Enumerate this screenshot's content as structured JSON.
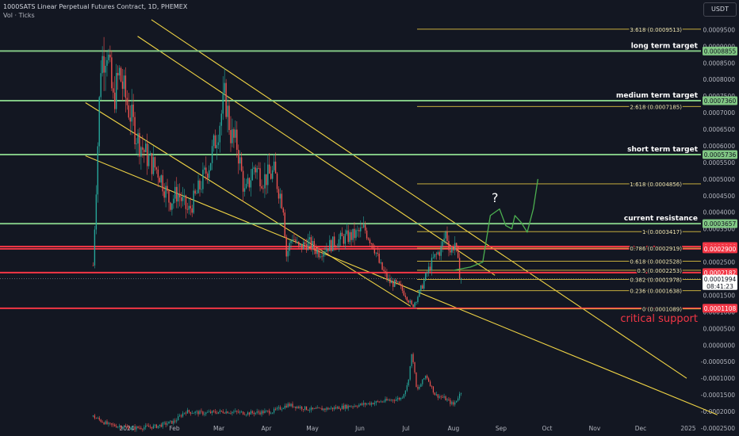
{
  "header": {
    "title": "1000SATS Linear Perpetual Futures Contract, 1D, PHEMEX",
    "volume_label": "Vol · Ticks"
  },
  "currency_label": "USDT",
  "colors": {
    "background": "#131722",
    "candle_up": "#26a69a",
    "candle_down": "#ef5350",
    "fib": "#e0c341",
    "trendline": "#f0d445",
    "support_resistance_green": "#81c784",
    "support_resistance_red": "#f23645",
    "projection": "#4caf50"
  },
  "chart_data": {
    "type": "candlestick",
    "ylim": [
      -0.00025,
      0.00097
    ],
    "price_axis_ticks": [
      "0.0009500",
      "0.0009000",
      "0.0008500",
      "0.0008000",
      "0.0007500",
      "0.0007000",
      "0.0006500",
      "0.0006000",
      "0.0005500",
      "0.0005000",
      "0.0004500",
      "0.0004000",
      "0.0003500",
      "0.0003000",
      "0.0002500",
      "0.0002000",
      "0.0001500",
      "0.0001000",
      "0.0000500",
      "0.0000000",
      "-0.0000500",
      "-0.0001000",
      "-0.0001500",
      "-0.0002000",
      "-0.0002500"
    ],
    "time_axis_labels": [
      "2024",
      "Feb",
      "Mar",
      "Apr",
      "May",
      "Jun",
      "Jul",
      "Aug",
      "Sep",
      "Oct",
      "Nov",
      "Dec",
      "2025"
    ],
    "fibonacci_levels": [
      {
        "label": "3.618 (0.0009513)",
        "value": 0.0009513
      },
      {
        "label": "2.618 (0.0007185)",
        "value": 0.0007185
      },
      {
        "label": "1.618 (0.0004856)",
        "value": 0.0004856
      },
      {
        "label": "1 (0.0003417)",
        "value": 0.0003417
      },
      {
        "label": "0.786 (0.0002919)",
        "value": 0.0002919
      },
      {
        "label": "0.618 (0.0002528)",
        "value": 0.0002528
      },
      {
        "label": "0.5 (0.0002253)",
        "value": 0.0002253
      },
      {
        "label": "0.382 (0.0001978)",
        "value": 0.0001978
      },
      {
        "label": "0.236 (0.0001638)",
        "value": 0.0001638
      },
      {
        "label": "0 (0.0001089)",
        "value": 0.0001089
      }
    ],
    "horizontal_levels": [
      {
        "label": "long term target",
        "value": 0.0008855,
        "color": "green",
        "badge": "0.0008855"
      },
      {
        "label": "medium term target",
        "value": 0.000736,
        "color": "green",
        "badge": "0.0007360"
      },
      {
        "label": "short term target",
        "value": 0.0005736,
        "color": "green",
        "badge": "0.0005736"
      },
      {
        "label": "current resistance",
        "value": 0.0003657,
        "color": "green",
        "badge": "0.0003657"
      },
      {
        "label": "",
        "value": 0.0002966,
        "color": "red",
        "badge": "0.0002966"
      },
      {
        "label": "",
        "value": 0.00029,
        "color": "red",
        "badge": "0.0002900"
      },
      {
        "label": "",
        "value": 0.0002182,
        "color": "red",
        "badge": "0.0002182"
      },
      {
        "label": "critical support",
        "value": 0.0001108,
        "color": "red",
        "badge": "0.0001108"
      }
    ],
    "last_price": {
      "value": "0.0001994",
      "countdown": "08:41:23"
    },
    "annotations": [
      "?"
    ],
    "trendlines": [
      {
        "points": [
          [
            "2024-01-08",
            0.00093
          ],
          [
            "2024-08-28",
            0.00021
          ]
        ]
      },
      {
        "points": [
          [
            "2024-01-17",
            0.00098
          ],
          [
            "2024-12-31",
            -0.0001
          ]
        ]
      },
      {
        "points": [
          [
            "2023-12-05",
            0.00073
          ],
          [
            "2024-07-04",
            0.000117
          ]
        ]
      },
      {
        "points": [
          [
            "2023-12-05",
            0.00057
          ],
          [
            "2025-01-20",
            -0.00021
          ]
        ]
      }
    ],
    "projection_path": [
      [
        "2024-08-01",
        0.000225
      ],
      [
        "2024-08-12",
        0.000235
      ],
      [
        "2024-08-20",
        0.00025
      ],
      [
        "2024-08-25",
        0.00039
      ],
      [
        "2024-08-31",
        0.00041
      ],
      [
        "2024-09-04",
        0.00036
      ],
      [
        "2024-09-08",
        0.00035
      ],
      [
        "2024-09-10",
        0.00039
      ],
      [
        "2024-09-14",
        0.00037
      ],
      [
        "2024-09-18",
        0.00034
      ],
      [
        "2024-09-22",
        0.00041
      ],
      [
        "2024-09-25",
        0.0005
      ]
    ],
    "price_path": [
      [
        "2023-12-10",
        0.00024
      ],
      [
        "2023-12-12",
        0.00048
      ],
      [
        "2023-12-15",
        0.00085
      ],
      [
        "2023-12-19",
        0.0009
      ],
      [
        "2023-12-23",
        0.00073
      ],
      [
        "2023-12-27",
        0.00082
      ],
      [
        "2024-01-01",
        0.00073
      ],
      [
        "2024-01-08",
        0.00062
      ],
      [
        "2024-01-15",
        0.00056
      ],
      [
        "2024-01-22",
        0.00052
      ],
      [
        "2024-01-29",
        0.00043
      ],
      [
        "2024-02-03",
        0.00046
      ],
      [
        "2024-02-10",
        0.0004
      ],
      [
        "2024-02-17",
        0.00047
      ],
      [
        "2024-02-24",
        0.00055
      ],
      [
        "2024-03-01",
        0.00066
      ],
      [
        "2024-03-05",
        0.00075
      ],
      [
        "2024-03-09",
        0.00063
      ],
      [
        "2024-03-13",
        0.0006
      ],
      [
        "2024-03-18",
        0.00045
      ],
      [
        "2024-03-24",
        0.00054
      ],
      [
        "2024-03-30",
        0.0005
      ],
      [
        "2024-04-06",
        0.00052
      ],
      [
        "2024-04-12",
        0.00042
      ],
      [
        "2024-04-14",
        0.00027
      ],
      [
        "2024-04-18",
        0.00033
      ],
      [
        "2024-04-22",
        0.00029
      ],
      [
        "2024-04-28",
        0.00031
      ],
      [
        "2024-05-05",
        0.00028
      ],
      [
        "2024-05-12",
        0.0003
      ],
      [
        "2024-05-20",
        0.00032
      ],
      [
        "2024-05-28",
        0.00033
      ],
      [
        "2024-06-04",
        0.00035
      ],
      [
        "2024-06-10",
        0.0003
      ],
      [
        "2024-06-14",
        0.00024
      ],
      [
        "2024-06-20",
        0.00019
      ],
      [
        "2024-06-26",
        0.00018
      ],
      [
        "2024-07-01",
        0.00015
      ],
      [
        "2024-07-05",
        0.000115
      ],
      [
        "2024-07-10",
        0.00016
      ],
      [
        "2024-07-15",
        0.00022
      ],
      [
        "2024-07-19",
        0.00026
      ],
      [
        "2024-07-24",
        0.00029
      ],
      [
        "2024-07-27",
        0.00034
      ],
      [
        "2024-07-30",
        0.00028
      ],
      [
        "2024-08-02",
        0.00031
      ],
      [
        "2024-08-05",
        0.00021
      ],
      [
        "2024-08-06",
        0.0001994
      ]
    ],
    "volume_path": [
      [
        "2023-12-10",
        -0.000215
      ],
      [
        "2023-12-20",
        -0.00024
      ],
      [
        "2024-01-05",
        -0.00025
      ],
      [
        "2024-01-20",
        -0.000245
      ],
      [
        "2024-02-01",
        -0.00023
      ],
      [
        "2024-02-08",
        -0.0002
      ],
      [
        "2024-02-20",
        -0.000205
      ],
      [
        "2024-03-05",
        -0.0002
      ],
      [
        "2024-03-20",
        -0.000205
      ],
      [
        "2024-04-05",
        -0.0002
      ],
      [
        "2024-04-15",
        -0.00018
      ],
      [
        "2024-05-01",
        -0.000195
      ],
      [
        "2024-05-15",
        -0.00019
      ],
      [
        "2024-06-01",
        -0.00018
      ],
      [
        "2024-06-15",
        -0.00017
      ],
      [
        "2024-06-28",
        -0.00016
      ],
      [
        "2024-07-02",
        -0.00012
      ],
      [
        "2024-07-05",
        -2e-05
      ],
      [
        "2024-07-08",
        -0.00014
      ],
      [
        "2024-07-14",
        -9e-05
      ],
      [
        "2024-07-20",
        -0.00015
      ],
      [
        "2024-07-26",
        -0.00016
      ],
      [
        "2024-08-01",
        -0.00018
      ],
      [
        "2024-08-06",
        -0.00014
      ]
    ]
  }
}
